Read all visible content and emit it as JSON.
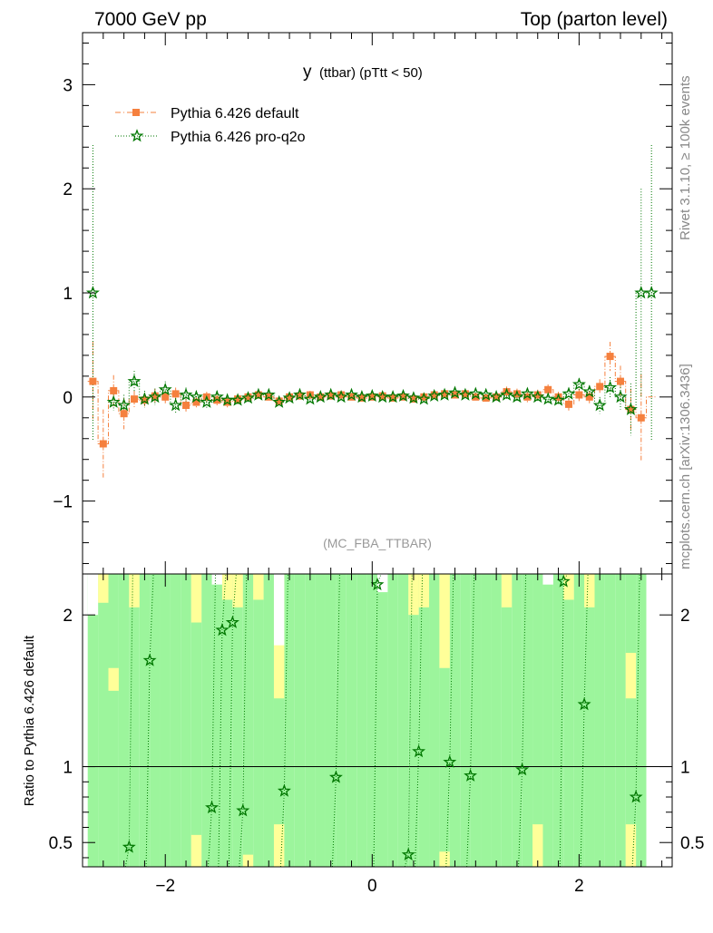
{
  "header": {
    "left": "7000 GeV pp",
    "right": "Top (parton level)"
  },
  "side": {
    "rivet": "Rivet 3.1.10, ≥ 100k events",
    "mcplots": "mcplots.cern.ch [arXiv:1306.3436]"
  },
  "colors": {
    "default": "#f5803e",
    "proq2o": "#007700",
    "band_green": "#9cf59c",
    "band_yellow": "#ffff99"
  },
  "chart_data": [
    {
      "type": "line",
      "title_main": "y",
      "title_sub": "(ttbar)  (pTtt < 50)",
      "watermark": "(MC_FBA_TTBAR)",
      "xlabel": "",
      "ylabel": "",
      "xlim": [
        -2.8,
        2.9
      ],
      "ylim": [
        -1.7,
        3.5
      ],
      "xticks": [
        -2,
        0,
        2
      ],
      "xtick_labels": [
        "−2",
        "0",
        "2"
      ],
      "yticks": [
        -1,
        0,
        1,
        2,
        3
      ],
      "ytick_labels": [
        "−1",
        "0",
        "1",
        "2",
        "3"
      ],
      "legend_position": "top-left",
      "x": [
        -2.7,
        -2.6,
        -2.5,
        -2.4,
        -2.3,
        -2.2,
        -2.1,
        -2.0,
        -1.9,
        -1.8,
        -1.7,
        -1.6,
        -1.5,
        -1.4,
        -1.3,
        -1.2,
        -1.1,
        -1.0,
        -0.9,
        -0.8,
        -0.7,
        -0.6,
        -0.5,
        -0.4,
        -0.3,
        -0.2,
        -0.1,
        0.0,
        0.1,
        0.2,
        0.3,
        0.4,
        0.5,
        0.6,
        0.7,
        0.8,
        0.9,
        1.0,
        1.1,
        1.2,
        1.3,
        1.4,
        1.5,
        1.6,
        1.7,
        1.8,
        1.9,
        2.0,
        2.1,
        2.2,
        2.3,
        2.4,
        2.5,
        2.6,
        2.7
      ],
      "series": [
        {
          "name": "Pythia 6.426 default",
          "marker": "square",
          "values": [
            0.15,
            -0.45,
            0.06,
            -0.16,
            -0.02,
            -0.03,
            0.01,
            0.0,
            0.03,
            -0.08,
            -0.05,
            0.0,
            -0.03,
            -0.05,
            -0.02,
            0.0,
            0.02,
            0.0,
            -0.04,
            0.0,
            0.01,
            0.02,
            0.0,
            0.01,
            0.02,
            0.0,
            -0.01,
            0.0,
            0.01,
            -0.01,
            0.0,
            -0.02,
            0.0,
            0.02,
            0.03,
            0.02,
            0.03,
            0.0,
            -0.01,
            0.0,
            0.05,
            0.03,
            0.0,
            0.02,
            0.07,
            0.0,
            -0.07,
            0.02,
            0.0,
            0.1,
            0.39,
            0.15,
            -0.12,
            -0.2,
            0.0
          ],
          "errors": [
            0.38,
            0.33,
            0.15,
            0.15,
            0.08,
            0.07,
            0.07,
            0.06,
            0.06,
            0.06,
            0.05,
            0.05,
            0.05,
            0.05,
            0.05,
            0.04,
            0.04,
            0.04,
            0.04,
            0.04,
            0.04,
            0.04,
            0.04,
            0.04,
            0.04,
            0.04,
            0.04,
            0.04,
            0.04,
            0.04,
            0.04,
            0.04,
            0.04,
            0.04,
            0.04,
            0.04,
            0.04,
            0.04,
            0.04,
            0.04,
            0.05,
            0.05,
            0.05,
            0.05,
            0.05,
            0.05,
            0.06,
            0.06,
            0.06,
            0.07,
            0.14,
            0.15,
            0.2,
            0.42,
            0.0
          ]
        },
        {
          "name": "Pythia 6.426 pro-q2o",
          "marker": "star",
          "values": [
            1.0,
            null,
            -0.05,
            -0.08,
            0.15,
            -0.02,
            0.0,
            0.07,
            -0.08,
            0.02,
            0.0,
            -0.05,
            0.0,
            -0.03,
            -0.03,
            -0.01,
            0.02,
            0.02,
            -0.05,
            -0.01,
            0.02,
            -0.02,
            0.0,
            0.02,
            0.0,
            0.02,
            0.0,
            0.01,
            0.0,
            0.0,
            0.01,
            -0.01,
            -0.02,
            0.01,
            0.02,
            0.04,
            0.02,
            0.03,
            0.02,
            0.0,
            0.02,
            0.0,
            0.03,
            0.0,
            -0.02,
            -0.03,
            0.03,
            0.12,
            0.05,
            -0.08,
            0.09,
            0.0,
            -0.12,
            1.0,
            1.0
          ],
          "errors": [
            1.42,
            0.0,
            0.08,
            0.1,
            0.1,
            0.08,
            0.08,
            0.08,
            0.07,
            0.07,
            0.06,
            0.06,
            0.06,
            0.05,
            0.05,
            0.05,
            0.05,
            0.05,
            0.04,
            0.04,
            0.04,
            0.04,
            0.04,
            0.04,
            0.04,
            0.04,
            0.04,
            0.04,
            0.04,
            0.04,
            0.04,
            0.04,
            0.04,
            0.04,
            0.04,
            0.04,
            0.04,
            0.04,
            0.04,
            0.04,
            0.05,
            0.05,
            0.05,
            0.05,
            0.05,
            0.05,
            0.06,
            0.06,
            0.06,
            0.08,
            0.1,
            0.12,
            0.25,
            1.0,
            1.42
          ]
        }
      ]
    },
    {
      "type": "line",
      "ylabel": "Ratio to Pythia 6.426 default",
      "xlim": [
        -2.8,
        2.9
      ],
      "ylim": [
        0.34,
        2.27
      ],
      "yticks": [
        0.5,
        1,
        2
      ],
      "ytick_labels": [
        "0.5",
        "1",
        "2"
      ],
      "reference_line": 1,
      "series": [
        {
          "name": "Pythia 6.426 pro-q2o / default",
          "x": [
            -2.35,
            -2.15,
            -1.55,
            -1.45,
            -1.35,
            -1.25,
            -0.85,
            -0.35,
            0.05,
            0.35,
            0.45,
            0.75,
            0.95,
            1.45,
            1.85,
            2.05,
            2.55
          ],
          "values": [
            0.47,
            1.7,
            0.73,
            1.9,
            1.95,
            0.71,
            0.84,
            0.93,
            2.2,
            0.42,
            1.1,
            1.03,
            0.94,
            0.98,
            2.22,
            1.41,
            0.8
          ]
        }
      ]
    }
  ]
}
